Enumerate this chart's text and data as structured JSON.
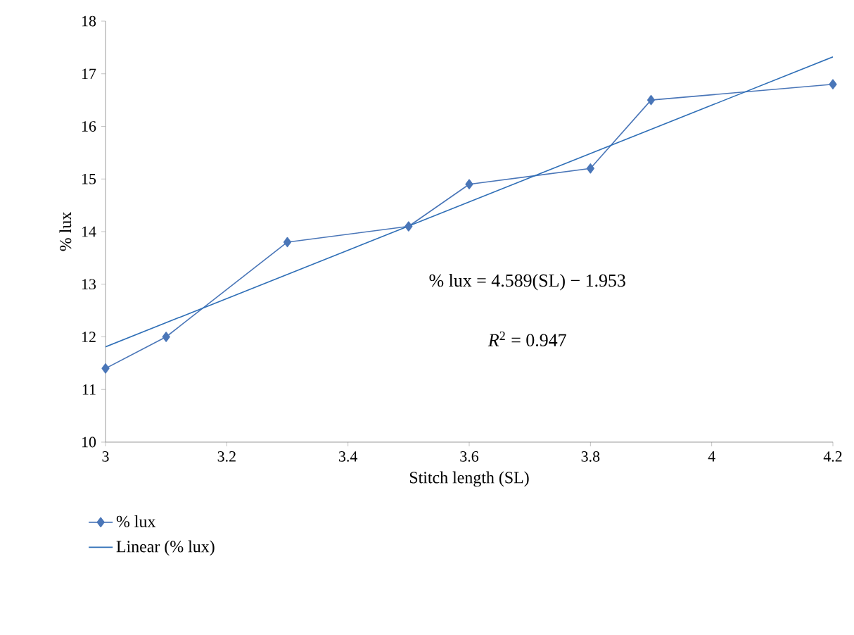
{
  "chart_data": {
    "type": "line",
    "xlabel": "Stitch length (SL)",
    "ylabel": "% lux",
    "xlim": [
      3,
      4.2
    ],
    "xticks": [
      3,
      3.2,
      3.4,
      3.6,
      3.8,
      4,
      4.2
    ],
    "ylim": [
      10,
      18
    ],
    "yticks": [
      10,
      11,
      12,
      13,
      14,
      15,
      16,
      17,
      18
    ],
    "series": [
      {
        "name": "% lux",
        "color": "#4a76b8",
        "marker": "diamond",
        "x": [
          3,
          3.1,
          3.3,
          3.5,
          3.6,
          3.8,
          3.9,
          4.2
        ],
        "values": [
          11.4,
          12.0,
          13.8,
          14.1,
          14.9,
          15.2,
          16.5,
          16.8
        ]
      },
      {
        "name": "Linear (% lux)",
        "color": "#2f6fb7",
        "marker": "none",
        "x": [
          3,
          4.2
        ],
        "values": [
          11.81,
          17.32
        ]
      }
    ],
    "annotations": [
      "% lux = 4.589(SL) − 1.953",
      "*R*$^{2}$ = 0.947"
    ],
    "legend": "bottom left",
    "grid": false
  }
}
